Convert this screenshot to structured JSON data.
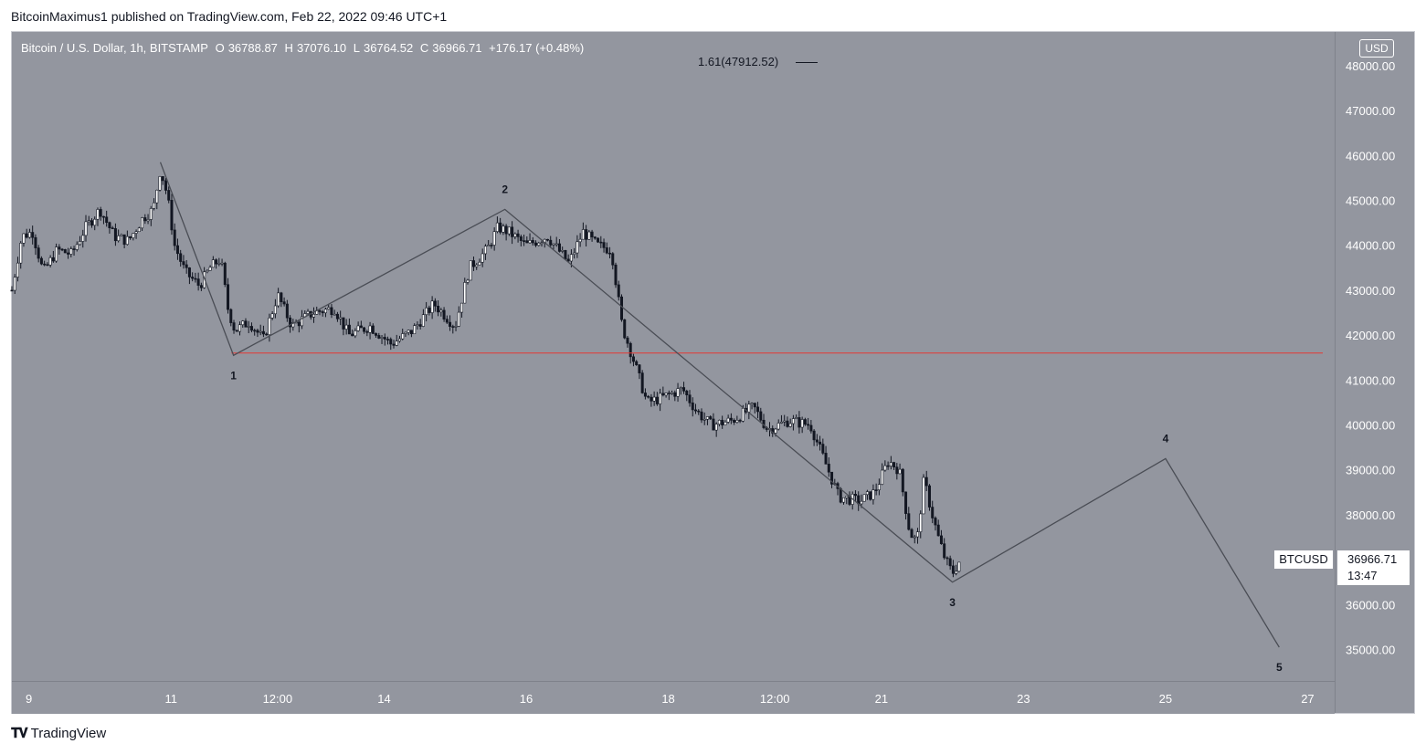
{
  "header": {
    "publisher_text": "BitcoinMaximus1 published on TradingView.com, Feb 22, 2022 09:46 UTC+1"
  },
  "legend": {
    "symbol": "Bitcoin / U.S. Dollar, 1h, BITSTAMP",
    "o_key": "O",
    "o_val": "36788.87",
    "h_key": "H",
    "h_val": "37076.10",
    "l_key": "L",
    "l_val": "36764.52",
    "c_key": "C",
    "c_val": "36966.71",
    "change": "+176.17 (+0.48%)"
  },
  "currency_badge": "USD",
  "fib_label": "1.61(47912.52)",
  "ticker_tag": "BTCUSD",
  "last_price": "36966.71",
  "countdown": "13:47",
  "footer_brand": "TradingView",
  "colors": {
    "background": "#93969f",
    "candle_up": "#ffffff",
    "candle_down": "#131722",
    "wave_line": "#4a4d55",
    "support_line": "#e53935"
  },
  "chart_data": {
    "type": "candlestick",
    "title": "Bitcoin / U.S. Dollar, 1h, BITSTAMP",
    "x_ticks": [
      "9",
      "11",
      "12:00",
      "14",
      "16",
      "18",
      "12:00",
      "21",
      "23",
      "25",
      "27"
    ],
    "x_tick_days": [
      9,
      11,
      12.5,
      14,
      16,
      18,
      19.5,
      21,
      23,
      25,
      27
    ],
    "y_ticks": [
      "48000.00",
      "47000.00",
      "46000.00",
      "45000.00",
      "44000.00",
      "43000.00",
      "42000.00",
      "41000.00",
      "40000.00",
      "39000.00",
      "38000.00",
      "37000.00",
      "36000.00",
      "35000.00"
    ],
    "ylim": [
      34300,
      48750
    ],
    "xlim_days": [
      8.76,
      27.38
    ],
    "support_level": 41600,
    "wave_path": [
      {
        "day": 10.85,
        "price": 45850,
        "label": ""
      },
      {
        "day": 11.88,
        "price": 41550,
        "label": "1"
      },
      {
        "day": 15.7,
        "price": 44800,
        "label": "2"
      },
      {
        "day": 22.0,
        "price": 36500,
        "label": "3"
      },
      {
        "day": 25.0,
        "price": 39250,
        "label": "4"
      },
      {
        "day": 26.6,
        "price": 35050,
        "label": "5"
      }
    ],
    "close_path": [
      {
        "day": 8.76,
        "price": 43000
      },
      {
        "day": 8.9,
        "price": 44200
      },
      {
        "day": 9.05,
        "price": 44300
      },
      {
        "day": 9.2,
        "price": 43400
      },
      {
        "day": 9.4,
        "price": 43900
      },
      {
        "day": 9.6,
        "price": 43800
      },
      {
        "day": 9.8,
        "price": 44400
      },
      {
        "day": 10.0,
        "price": 44800
      },
      {
        "day": 10.2,
        "price": 44200
      },
      {
        "day": 10.4,
        "price": 44100
      },
      {
        "day": 10.6,
        "price": 44600
      },
      {
        "day": 10.75,
        "price": 44800
      },
      {
        "day": 10.85,
        "price": 45700
      },
      {
        "day": 10.95,
        "price": 45100
      },
      {
        "day": 11.05,
        "price": 44000
      },
      {
        "day": 11.2,
        "price": 43400
      },
      {
        "day": 11.4,
        "price": 43100
      },
      {
        "day": 11.55,
        "price": 43500
      },
      {
        "day": 11.7,
        "price": 43700
      },
      {
        "day": 11.8,
        "price": 42600
      },
      {
        "day": 11.9,
        "price": 42100
      },
      {
        "day": 12.1,
        "price": 42300
      },
      {
        "day": 12.3,
        "price": 41900
      },
      {
        "day": 12.5,
        "price": 42900
      },
      {
        "day": 12.7,
        "price": 42200
      },
      {
        "day": 13.0,
        "price": 42500
      },
      {
        "day": 13.3,
        "price": 42600
      },
      {
        "day": 13.5,
        "price": 42000
      },
      {
        "day": 13.8,
        "price": 42200
      },
      {
        "day": 14.1,
        "price": 41800
      },
      {
        "day": 14.4,
        "price": 42100
      },
      {
        "day": 14.7,
        "price": 42700
      },
      {
        "day": 15.0,
        "price": 42200
      },
      {
        "day": 15.2,
        "price": 43500
      },
      {
        "day": 15.45,
        "price": 43900
      },
      {
        "day": 15.6,
        "price": 44400
      },
      {
        "day": 15.75,
        "price": 44300
      },
      {
        "day": 16.0,
        "price": 44000
      },
      {
        "day": 16.3,
        "price": 44200
      },
      {
        "day": 16.6,
        "price": 43600
      },
      {
        "day": 16.8,
        "price": 44300
      },
      {
        "day": 17.0,
        "price": 44000
      },
      {
        "day": 17.2,
        "price": 43900
      },
      {
        "day": 17.35,
        "price": 42200
      },
      {
        "day": 17.5,
        "price": 41500
      },
      {
        "day": 17.7,
        "price": 40500
      },
      {
        "day": 17.9,
        "price": 40600
      },
      {
        "day": 18.2,
        "price": 40800
      },
      {
        "day": 18.4,
        "price": 40300
      },
      {
        "day": 18.6,
        "price": 40000
      },
      {
        "day": 18.9,
        "price": 40100
      },
      {
        "day": 19.2,
        "price": 40400
      },
      {
        "day": 19.4,
        "price": 39900
      },
      {
        "day": 19.7,
        "price": 40100
      },
      {
        "day": 20.0,
        "price": 40000
      },
      {
        "day": 20.2,
        "price": 39200
      },
      {
        "day": 20.4,
        "price": 38400
      },
      {
        "day": 20.7,
        "price": 38300
      },
      {
        "day": 20.9,
        "price": 38500
      },
      {
        "day": 21.1,
        "price": 39200
      },
      {
        "day": 21.25,
        "price": 39000
      },
      {
        "day": 21.4,
        "price": 37600
      },
      {
        "day": 21.5,
        "price": 37400
      },
      {
        "day": 21.6,
        "price": 38800
      },
      {
        "day": 21.7,
        "price": 38100
      },
      {
        "day": 21.8,
        "price": 37500
      },
      {
        "day": 21.9,
        "price": 37000
      },
      {
        "day": 22.0,
        "price": 36700
      },
      {
        "day": 22.1,
        "price": 36967
      }
    ]
  }
}
